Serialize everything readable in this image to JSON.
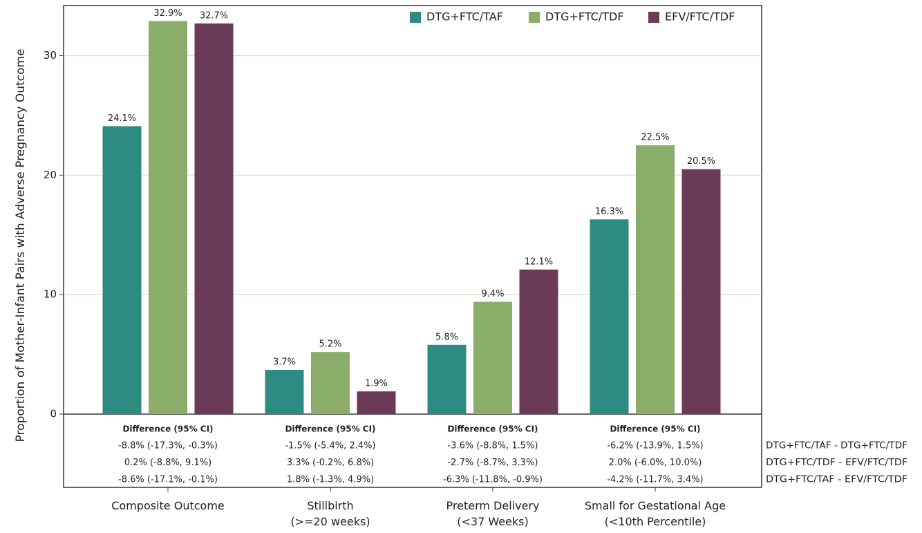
{
  "chart_data": {
    "type": "bar",
    "y_label": "Proportion of Mother-Infant Pairs with Adverse Pregnancy Outcome",
    "categories": [
      "Composite Outcome",
      "Stillbirth\n(>=20 weeks)",
      "Preterm Delivery\n(<37 Weeks)",
      "Small for Gestational Age\n(<10th Percentile)"
    ],
    "series": [
      {
        "name": "DTG+FTC/TAF",
        "color": "#2e8b82",
        "values": [
          24.1,
          3.7,
          5.8,
          16.3
        ],
        "value_labels": [
          "24.1%",
          "3.7%",
          "5.8%",
          "16.3%"
        ]
      },
      {
        "name": "DTG+FTC/TDF",
        "color": "#8aad6a",
        "values": [
          32.9,
          5.2,
          9.4,
          22.5
        ],
        "value_labels": [
          "32.9%",
          "5.2%",
          "9.4%",
          "22.5%"
        ]
      },
      {
        "name": "EFV/FTC/TDF",
        "color": "#6b3a57",
        "values": [
          32.7,
          1.9,
          12.1,
          20.5
        ],
        "value_labels": [
          "32.7%",
          "1.9%",
          "12.1%",
          "20.5%"
        ]
      }
    ],
    "ylim": [
      0,
      34.2
    ],
    "yticks": [
      0,
      10,
      20,
      30
    ],
    "grid": true,
    "legend": "top-right",
    "difference_table": {
      "header": "Difference (95% CI)",
      "row_labels": [
        "DTG+FTC/TAF - DTG+FTC/TDF",
        "DTG+FTC/TDF - EFV/FTC/TDF",
        "DTG+FTC/TAF - EFV/FTC/TDF"
      ],
      "cells": [
        [
          "-8.8% (-17.3%, -0.3%)",
          "0.2% (-8.8%, 9.1%)",
          "-8.6% (-17.1%, -0.1%)"
        ],
        [
          "-1.5% (-5.4%, 2.4%)",
          "3.3% (-0.2%, 6.8%)",
          "1.8% (-1.3%, 4.9%)"
        ],
        [
          "-3.6% (-8.8%, 1.5%)",
          "-2.7% (-8.7%, 3.3%)",
          "-6.3% (-11.8%, -0.9%)"
        ],
        [
          "-6.2% (-13.9%, 1.5%)",
          "2.0% (-6.0%, 10.0%)",
          "-4.2% (-11.7%, 3.4%)"
        ]
      ]
    }
  }
}
